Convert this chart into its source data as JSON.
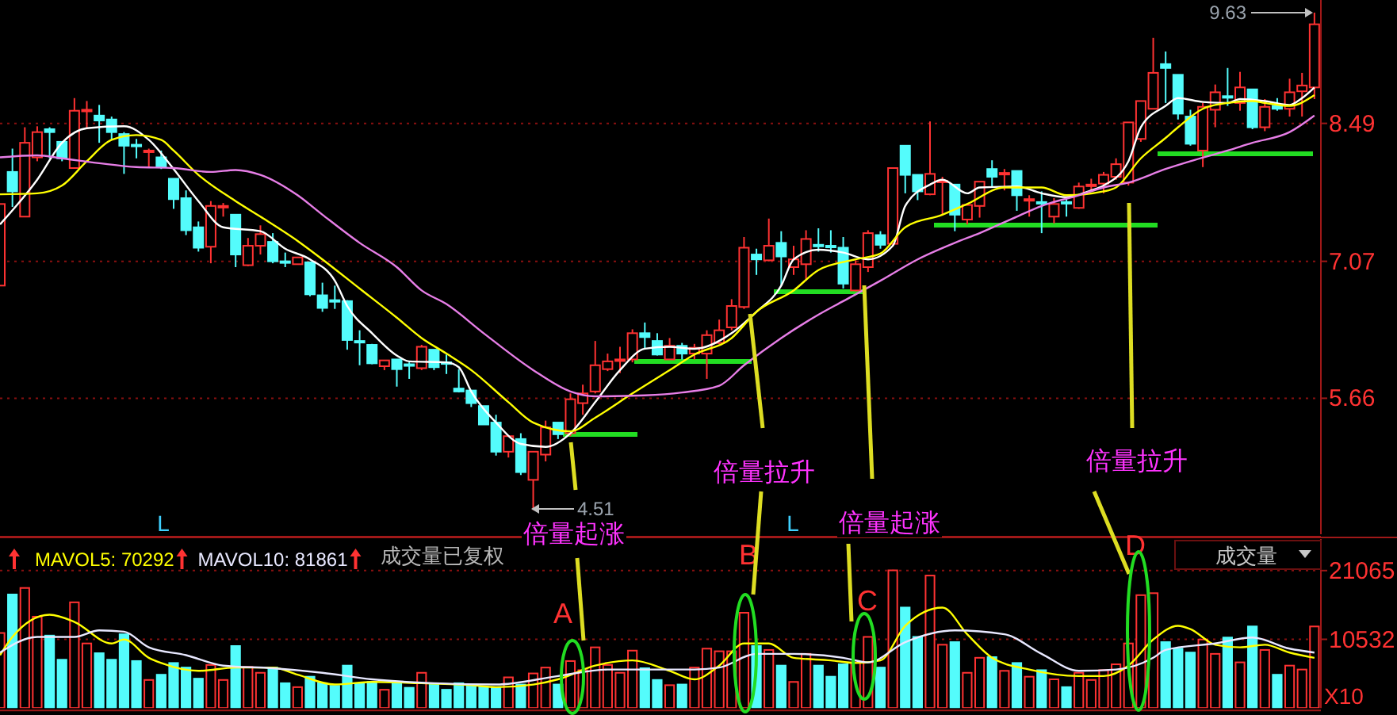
{
  "chart_data": [
    {
      "type": "candlestick",
      "categories": [
        null,
        null,
        null,
        null,
        null,
        null,
        null,
        null,
        null,
        null,
        null,
        null,
        null,
        null,
        null,
        null,
        null,
        null,
        null,
        null,
        null,
        null,
        null,
        null,
        null,
        null,
        null,
        null,
        null,
        null,
        null,
        null,
        null,
        null,
        null,
        null,
        null,
        null,
        null,
        null,
        null,
        null,
        null,
        null,
        null,
        null,
        null,
        null,
        null,
        null,
        null,
        null,
        null,
        null,
        null,
        null,
        null,
        null,
        null,
        null,
        null,
        null,
        null,
        null,
        null,
        null,
        null,
        null,
        null,
        null,
        null,
        null,
        null,
        null,
        null,
        null,
        null,
        null,
        null,
        null,
        null,
        null,
        null,
        null,
        null,
        null,
        null,
        null,
        null,
        null,
        null,
        null,
        null,
        null,
        null,
        null,
        null,
        null,
        null,
        null,
        null,
        null,
        null,
        null,
        null,
        null,
        null
      ],
      "ohlc": [
        [
          6.82,
          7.66,
          6.82,
          7.66
        ],
        [
          7.99,
          8.23,
          7.63,
          7.79
        ],
        [
          7.53,
          8.45,
          7.53,
          8.29
        ],
        [
          8.14,
          8.46,
          8.1,
          8.4
        ],
        [
          8.43,
          8.45,
          8.13,
          8.4
        ],
        [
          8.3,
          8.3,
          8.1,
          8.13
        ],
        [
          8.03,
          8.75,
          8.03,
          8.62
        ],
        [
          8.62,
          8.72,
          8.43,
          8.63
        ],
        [
          8.57,
          8.68,
          8.29,
          8.52
        ],
        [
          8.53,
          8.56,
          8.32,
          8.4
        ],
        [
          8.38,
          8.4,
          7.97,
          8.26
        ],
        [
          8.27,
          8.33,
          8.13,
          8.26
        ],
        [
          8.2,
          8.23,
          8.04,
          8.21
        ],
        [
          8.14,
          8.21,
          8.02,
          8.04
        ],
        [
          7.92,
          7.92,
          7.61,
          7.71
        ],
        [
          7.72,
          7.8,
          7.34,
          7.39
        ],
        [
          7.42,
          7.48,
          7.17,
          7.21
        ],
        [
          7.22,
          7.69,
          7.05,
          7.64
        ],
        [
          7.63,
          7.67,
          7.53,
          7.64
        ],
        [
          7.55,
          7.55,
          7.01,
          7.14
        ],
        [
          7.03,
          7.31,
          7.02,
          7.23
        ],
        [
          7.23,
          7.44,
          7.14,
          7.35
        ],
        [
          7.27,
          7.36,
          7.05,
          7.07
        ],
        [
          7.07,
          7.16,
          7.01,
          7.06
        ],
        [
          7.04,
          7.11,
          7.04,
          7.11
        ],
        [
          7.06,
          7.06,
          6.71,
          6.73
        ],
        [
          6.72,
          6.85,
          6.55,
          6.59
        ],
        [
          6.67,
          6.82,
          6.58,
          6.66
        ],
        [
          6.66,
          6.67,
          6.16,
          6.26
        ],
        [
          6.25,
          6.36,
          6.0,
          6.24
        ],
        [
          6.21,
          6.22,
          6.01,
          6.02
        ],
        [
          5.99,
          6.05,
          5.95,
          6.05
        ],
        [
          6.06,
          6.06,
          5.78,
          5.96
        ],
        [
          6.01,
          6.03,
          5.86,
          6.0
        ],
        [
          5.97,
          6.21,
          5.95,
          6.19
        ],
        [
          6.16,
          6.16,
          5.95,
          5.98
        ],
        [
          6.03,
          6.11,
          5.91,
          6.02
        ],
        [
          5.76,
          5.96,
          5.72,
          5.73
        ],
        [
          5.74,
          5.74,
          5.57,
          5.61
        ],
        [
          5.58,
          5.58,
          5.39,
          5.39
        ],
        [
          5.41,
          5.49,
          5.07,
          5.11
        ],
        [
          5.11,
          5.27,
          5.05,
          5.27
        ],
        [
          5.24,
          5.3,
          4.87,
          4.9
        ],
        [
          4.82,
          5.11,
          4.51,
          5.11
        ],
        [
          5.08,
          5.43,
          5.01,
          5.36
        ],
        [
          5.41,
          5.41,
          5.24,
          5.29
        ],
        [
          5.3,
          5.71,
          5.27,
          5.65
        ],
        [
          5.61,
          5.8,
          5.49,
          5.71
        ],
        [
          5.73,
          6.25,
          5.71,
          6.0
        ],
        [
          5.96,
          6.12,
          5.94,
          6.04
        ],
        [
          6.05,
          6.19,
          5.92,
          6.06
        ],
        [
          6.06,
          6.37,
          6.03,
          6.33
        ],
        [
          6.33,
          6.44,
          6.17,
          6.29
        ],
        [
          6.25,
          6.33,
          6.1,
          6.11
        ],
        [
          6.06,
          6.28,
          6.06,
          6.2
        ],
        [
          6.2,
          6.23,
          6.06,
          6.12
        ],
        [
          6.12,
          6.22,
          6.06,
          6.18
        ],
        [
          6.12,
          6.36,
          5.86,
          6.31
        ],
        [
          6.23,
          6.47,
          6.22,
          6.36
        ],
        [
          6.39,
          6.68,
          6.36,
          6.61
        ],
        [
          6.6,
          7.32,
          6.58,
          7.21
        ],
        [
          7.14,
          7.2,
          6.93,
          7.09
        ],
        [
          7.08,
          7.51,
          7.07,
          7.23
        ],
        [
          7.26,
          7.38,
          6.82,
          7.12
        ],
        [
          7.01,
          7.23,
          6.93,
          7.09
        ],
        [
          7.04,
          7.39,
          6.87,
          7.3
        ],
        [
          7.24,
          7.41,
          7.17,
          7.23
        ],
        [
          7.23,
          7.39,
          7.16,
          7.22
        ],
        [
          7.21,
          7.32,
          6.79,
          6.84
        ],
        [
          6.77,
          7.08,
          6.76,
          7.04
        ],
        [
          7.01,
          7.39,
          6.96,
          7.36
        ],
        [
          7.34,
          7.38,
          7.2,
          7.24
        ],
        [
          7.25,
          8.03,
          7.23,
          8.03
        ],
        [
          8.26,
          8.26,
          7.77,
          7.96
        ],
        [
          7.96,
          7.96,
          7.7,
          7.79
        ],
        [
          7.76,
          8.51,
          7.75,
          7.97
        ],
        [
          7.89,
          7.94,
          7.55,
          7.9
        ],
        [
          7.86,
          7.86,
          7.38,
          7.55
        ],
        [
          7.5,
          7.66,
          7.45,
          7.65
        ],
        [
          7.64,
          7.89,
          7.52,
          7.89
        ],
        [
          8.02,
          8.11,
          7.83,
          7.94
        ],
        [
          7.97,
          8.02,
          7.8,
          7.98
        ],
        [
          8.0,
          8.0,
          7.59,
          7.75
        ],
        [
          7.7,
          7.75,
          7.53,
          7.71
        ],
        [
          7.68,
          7.79,
          7.36,
          7.67
        ],
        [
          7.53,
          7.72,
          7.46,
          7.66
        ],
        [
          7.68,
          7.73,
          7.53,
          7.67
        ],
        [
          7.62,
          7.88,
          7.61,
          7.84
        ],
        [
          7.85,
          7.92,
          7.8,
          7.86
        ],
        [
          7.87,
          7.99,
          7.77,
          7.96
        ],
        [
          7.94,
          8.13,
          7.91,
          8.07
        ],
        [
          7.88,
          8.5,
          7.85,
          8.5
        ],
        [
          8.33,
          8.72,
          8.3,
          8.72
        ],
        [
          8.64,
          9.37,
          8.64,
          9.01
        ],
        [
          9.1,
          9.23,
          8.7,
          9.06
        ],
        [
          8.99,
          8.99,
          8.53,
          8.59
        ],
        [
          8.56,
          8.63,
          8.26,
          8.28
        ],
        [
          8.21,
          8.7,
          8.04,
          8.66
        ],
        [
          8.63,
          8.89,
          8.45,
          8.81
        ],
        [
          8.77,
          9.06,
          8.67,
          8.76
        ],
        [
          8.7,
          9.02,
          8.62,
          8.86
        ],
        [
          8.84,
          8.84,
          8.43,
          8.45
        ],
        [
          8.45,
          8.74,
          8.41,
          8.66
        ],
        [
          8.67,
          8.75,
          8.62,
          8.64
        ],
        [
          8.64,
          8.95,
          8.56,
          8.81
        ],
        [
          8.82,
          9.01,
          8.56,
          8.88
        ],
        [
          8.86,
          9.63,
          8.74,
          9.51
        ]
      ],
      "colors": [
        "#ff3232",
        "#54fcfc",
        "#ff3232",
        "#ff3232",
        "#54fcfc",
        "#54fcfc",
        "#ff3232",
        "#ff3232",
        "#54fcfc",
        "#54fcfc",
        "#54fcfc",
        "#54fcfc",
        "#ff3232",
        "#54fcfc",
        "#54fcfc",
        "#54fcfc",
        "#54fcfc",
        "#ff3232",
        "#ff3232",
        "#54fcfc",
        "#ff3232",
        "#ff3232",
        "#54fcfc",
        "#54fcfc",
        "#ff3232",
        "#54fcfc",
        "#54fcfc",
        "#54fcfc",
        "#54fcfc",
        "#54fcfc",
        "#54fcfc",
        "#ff3232",
        "#54fcfc",
        "#54fcfc",
        "#ff3232",
        "#54fcfc",
        "#54fcfc",
        "#54fcfc",
        "#54fcfc",
        "#54fcfc",
        "#54fcfc",
        "#ff3232",
        "#54fcfc",
        "#ff3232",
        "#ff3232",
        "#54fcfc",
        "#ff3232",
        "#ff3232",
        "#ff3232",
        "#ff3232",
        "#ff3232",
        "#ff3232",
        "#54fcfc",
        "#54fcfc",
        "#ff3232",
        "#54fcfc",
        "#ff3232",
        "#ff3232",
        "#ff3232",
        "#ff3232",
        "#ff3232",
        "#54fcfc",
        "#ff3232",
        "#54fcfc",
        "#ff3232",
        "#ff3232",
        "#54fcfc",
        "#54fcfc",
        "#54fcfc",
        "#ff3232",
        "#ff3232",
        "#54fcfc",
        "#ff3232",
        "#54fcfc",
        "#54fcfc",
        "#ff3232",
        "#ff3232",
        "#54fcfc",
        "#ff3232",
        "#ff3232",
        "#54fcfc",
        "#ff3232",
        "#54fcfc",
        "#ff3232",
        "#54fcfc",
        "#ff3232",
        "#54fcfc",
        "#ff3232",
        "#ff3232",
        "#ff3232",
        "#ff3232",
        "#ff3232",
        "#ff3232",
        "#ff3232",
        "#54fcfc",
        "#54fcfc",
        "#54fcfc",
        "#ff3232",
        "#ff3232",
        "#54fcfc",
        "#ff3232",
        "#54fcfc",
        "#ff3232",
        "#54fcfc",
        "#ff3232",
        "#ff3232",
        "#ff3232"
      ],
      "series": [
        {
          "type": "line",
          "color": "#ffffff",
          "values": [
            7.45,
            null,
            null,
            7.91,
            null,
            8.29,
            null,
            8.44,
            null,
            null,
            8.46,
            null,
            8.32,
            null,
            8.02,
            null,
            7.69,
            null,
            7.42,
            null,
            null,
            7.38,
            null,
            7.2,
            null,
            7.09,
            null,
            6.87,
            6.61,
            null,
            6.33,
            null,
            6.1,
            6.04,
            null,
            null,
            6.03,
            5.98,
            5.73,
            null,
            5.41,
            null,
            5.19,
            null,
            5.16,
            null,
            5.3,
            null,
            5.62,
            null,
            5.95,
            null,
            6.17,
            null,
            6.19,
            null,
            6.17,
            null,
            null,
            6.33,
            null,
            6.55,
            null,
            6.82,
            7.09,
            null,
            7.19,
            null,
            7.16,
            null,
            7.09,
            null,
            7.23,
            7.64,
            null,
            7.86,
            7.91,
            null,
            7.77,
            7.83,
            null,
            null,
            7.84,
            null,
            7.77,
            null,
            7.73,
            null,
            7.8,
            7.85,
            null,
            8.1,
            8.45,
            null,
            8.67,
            8.75,
            null,
            8.71,
            null,
            8.7,
            8.74,
            null,
            8.72,
            null,
            8.68,
            8.75,
            8.86
          ]
        },
        {
          "type": "line",
          "color": "#ffff00",
          "values": [
            7.76,
            null,
            null,
            7.77,
            null,
            7.85,
            null,
            8.1,
            null,
            8.32,
            null,
            8.37,
            null,
            8.32,
            8.21,
            null,
            7.96,
            null,
            null,
            7.69,
            null,
            7.53,
            null,
            null,
            7.28,
            null,
            7.09,
            null,
            null,
            6.79,
            null,
            null,
            6.49,
            null,
            6.28,
            null,
            6.12,
            null,
            5.95,
            null,
            null,
            5.62,
            null,
            5.41,
            null,
            null,
            5.32,
            null,
            5.46,
            null,
            null,
            5.71,
            null,
            null,
            5.95,
            null,
            6.11,
            null,
            null,
            6.28,
            null,
            6.55,
            null,
            null,
            6.77,
            null,
            6.98,
            null,
            null,
            7.09,
            null,
            7.15,
            null,
            7.42,
            null,
            null,
            7.55,
            null,
            7.66,
            null,
            null,
            7.83,
            null,
            null,
            7.83,
            null,
            7.75,
            null,
            null,
            7.79,
            7.83,
            null,
            8.13,
            null,
            8.34,
            8.45,
            null,
            8.64,
            null,
            8.7,
            null,
            8.72,
            8.7,
            null,
            8.67,
            null,
            8.78
          ]
        },
        {
          "type": "line",
          "color": "#e77ee7",
          "values": [
            8.14,
            null,
            null,
            8.16,
            null,
            8.13,
            null,
            null,
            8.08,
            null,
            null,
            8.04,
            null,
            null,
            8.03,
            null,
            null,
            7.99,
            null,
            8.01,
            null,
            7.96,
            null,
            null,
            7.75,
            null,
            7.55,
            null,
            null,
            7.26,
            null,
            null,
            7.01,
            null,
            6.77,
            null,
            6.63,
            null,
            null,
            6.33,
            null,
            null,
            null,
            5.95,
            null,
            null,
            5.73,
            null,
            5.68,
            null,
            null,
            null,
            5.69,
            null,
            null,
            5.72,
            null,
            null,
            5.79,
            null,
            6.0,
            null,
            null,
            6.28,
            null,
            null,
            6.52,
            null,
            6.66,
            null,
            null,
            6.87,
            null,
            null,
            7.09,
            null,
            null,
            7.26,
            null,
            7.36,
            null,
            null,
            7.53,
            null,
            7.64,
            null,
            null,
            7.75,
            null,
            7.83,
            null,
            7.88,
            null,
            null,
            8.02,
            null,
            8.1,
            null,
            null,
            8.21,
            null,
            8.29,
            null,
            null,
            8.4,
            null,
            8.57
          ]
        }
      ],
      "ylim": [
        4.26,
        9.76
      ],
      "yticks": [
        5.66,
        7.07,
        8.49
      ],
      "grid": "y",
      "tick_labels": "y",
      "annotations": [
        "倍量起涨",
        "倍量拉升",
        "倍量起涨",
        "倍量拉升",
        "4.51",
        "9.63",
        "L",
        "L"
      ]
    },
    {
      "type": "bar",
      "categories": [
        null,
        null,
        null,
        null,
        null,
        null,
        null,
        null,
        null,
        null,
        null,
        null,
        null,
        null,
        null,
        null,
        null,
        null,
        null,
        null,
        null,
        null,
        null,
        null,
        null,
        null,
        null,
        null,
        null,
        null,
        null,
        null,
        null,
        null,
        null,
        null,
        null,
        null,
        null,
        null,
        null,
        null,
        null,
        null,
        null,
        null,
        null,
        null,
        null,
        null,
        null,
        null,
        null,
        null,
        null,
        null,
        null,
        null,
        null,
        null,
        null,
        null,
        null,
        null,
        null,
        null,
        null,
        null,
        null,
        null,
        null,
        null,
        null,
        null,
        null,
        null,
        null,
        null,
        null,
        null,
        null,
        null,
        null,
        null,
        null,
        null,
        null,
        null,
        null,
        null,
        null,
        null,
        null,
        null,
        null,
        null,
        null,
        null,
        null,
        null,
        null,
        null,
        null,
        null,
        null,
        null,
        null
      ],
      "series": [
        {
          "type": "bar",
          "values": [
            11500,
            17400,
            18400,
            14000,
            11100,
            7400,
            16200,
            9900,
            8400,
            7400,
            11300,
            7200,
            4300,
            5100,
            6900,
            6200,
            4500,
            6600,
            4300,
            9500,
            6300,
            5400,
            6200,
            3800,
            3200,
            4800,
            3800,
            3400,
            6500,
            3800,
            4000,
            2800,
            4000,
            3100,
            5400,
            3600,
            2800,
            3800,
            3400,
            3200,
            3200,
            4700,
            3600,
            5300,
            6200,
            3600,
            7200,
            5800,
            9300,
            6600,
            5400,
            8800,
            6100,
            4300,
            3500,
            3600,
            6200,
            9100,
            8700,
            8700,
            14600,
            9500,
            8900,
            6500,
            4000,
            8300,
            6500,
            4800,
            6700,
            7000,
            10900,
            6200,
            21100,
            15400,
            10900,
            20300,
            9700,
            10100,
            5400,
            7700,
            7800,
            5700,
            6900,
            4800,
            5800,
            4400,
            3200,
            5400,
            4300,
            5800,
            6700,
            9900,
            17300,
            17600,
            10100,
            9100,
            8500,
            10500,
            8300,
            10800,
            7000,
            12500,
            8900,
            5100,
            6500,
            5900,
            12500
          ],
          "colors": [
            "#ff3232",
            "#54fcfc",
            "#ff3232",
            "#ff3232",
            "#54fcfc",
            "#54fcfc",
            "#ff3232",
            "#ff3232",
            "#54fcfc",
            "#54fcfc",
            "#54fcfc",
            "#54fcfc",
            "#ff3232",
            "#54fcfc",
            "#54fcfc",
            "#54fcfc",
            "#54fcfc",
            "#ff3232",
            "#ff3232",
            "#54fcfc",
            "#ff3232",
            "#ff3232",
            "#54fcfc",
            "#54fcfc",
            "#ff3232",
            "#54fcfc",
            "#54fcfc",
            "#54fcfc",
            "#54fcfc",
            "#54fcfc",
            "#54fcfc",
            "#ff3232",
            "#54fcfc",
            "#54fcfc",
            "#ff3232",
            "#54fcfc",
            "#54fcfc",
            "#54fcfc",
            "#54fcfc",
            "#54fcfc",
            "#54fcfc",
            "#ff3232",
            "#54fcfc",
            "#ff3232",
            "#ff3232",
            "#54fcfc",
            "#ff3232",
            "#ff3232",
            "#ff3232",
            "#ff3232",
            "#ff3232",
            "#ff3232",
            "#54fcfc",
            "#54fcfc",
            "#ff3232",
            "#54fcfc",
            "#ff3232",
            "#ff3232",
            "#ff3232",
            "#ff3232",
            "#ff3232",
            "#54fcfc",
            "#ff3232",
            "#54fcfc",
            "#ff3232",
            "#ff3232",
            "#54fcfc",
            "#54fcfc",
            "#54fcfc",
            "#ff3232",
            "#ff3232",
            "#54fcfc",
            "#ff3232",
            "#54fcfc",
            "#54fcfc",
            "#ff3232",
            "#ff3232",
            "#54fcfc",
            "#ff3232",
            "#ff3232",
            "#54fcfc",
            "#ff3232",
            "#54fcfc",
            "#ff3232",
            "#54fcfc",
            "#ff3232",
            "#54fcfc",
            "#ff3232",
            "#ff3232",
            "#ff3232",
            "#ff3232",
            "#ff3232",
            "#ff3232",
            "#ff3232",
            "#54fcfc",
            "#54fcfc",
            "#54fcfc",
            "#ff3232",
            "#ff3232",
            "#54fcfc",
            "#ff3232",
            "#54fcfc",
            "#ff3232",
            "#54fcfc",
            "#ff3232",
            "#ff3232",
            "#ff3232"
          ]
        },
        {
          "type": "line",
          "name": "MAVOL5: 70292",
          "color": "#ffff00",
          "values": [
            8100,
            10900,
            null,
            null,
            14300,
            null,
            13200,
            null,
            null,
            9900,
            10500,
            null,
            7700,
            6900,
            null,
            null,
            5700,
            null,
            null,
            6200,
            null,
            null,
            6200,
            null,
            5100,
            null,
            null,
            3600,
            null,
            null,
            4000,
            null,
            null,
            null,
            3800,
            null,
            null,
            null,
            3500,
            null,
            3200,
            null,
            null,
            3600,
            null,
            4400,
            null,
            null,
            6500,
            null,
            null,
            7300,
            null,
            null,
            5700,
            null,
            4400,
            null,
            6500,
            null,
            9900,
            null,
            9900,
            null,
            7700,
            null,
            null,
            7300,
            null,
            6900,
            null,
            7300,
            null,
            12600,
            null,
            null,
            15400,
            null,
            11300,
            null,
            7700,
            null,
            null,
            5900,
            null,
            null,
            null,
            4900,
            null,
            4900,
            null,
            6500,
            null,
            10500,
            null,
            12600,
            12100,
            null,
            9700,
            null,
            9300,
            null,
            9700,
            null,
            8500,
            null,
            7700
          ]
        },
        {
          "type": "line",
          "name": "MAVOL10: 81861",
          "color": "#e8e8ff",
          "values": [
            8500,
            null,
            null,
            10900,
            null,
            null,
            10900,
            null,
            11900,
            null,
            11700,
            null,
            9300,
            null,
            null,
            8100,
            null,
            null,
            6500,
            null,
            null,
            null,
            6100,
            null,
            null,
            null,
            5400,
            null,
            null,
            null,
            4400,
            null,
            null,
            null,
            null,
            3800,
            null,
            null,
            null,
            null,
            3600,
            null,
            null,
            null,
            null,
            4900,
            null,
            null,
            null,
            5900,
            null,
            5900,
            null,
            null,
            null,
            null,
            5900,
            null,
            6200,
            null,
            null,
            8300,
            null,
            null,
            8300,
            null,
            null,
            null,
            7700,
            null,
            7000,
            null,
            null,
            10100,
            null,
            null,
            null,
            11900,
            null,
            null,
            null,
            11300,
            null,
            null,
            8300,
            null,
            null,
            5700,
            null,
            null,
            5900,
            null,
            null,
            7700,
            8900,
            null,
            null,
            null,
            9900,
            null,
            null,
            10800,
            null,
            null,
            9100,
            null,
            8500
          ]
        }
      ],
      "ylim": [
        0,
        25900
      ],
      "yticks": [
        10532,
        21065
      ],
      "grid": "y",
      "tick_labels": "y",
      "legend": "top left",
      "annotations": [
        "A",
        "B",
        "C",
        "D",
        "成交量已复权",
        "成交量",
        "X10"
      ]
    }
  ]
}
